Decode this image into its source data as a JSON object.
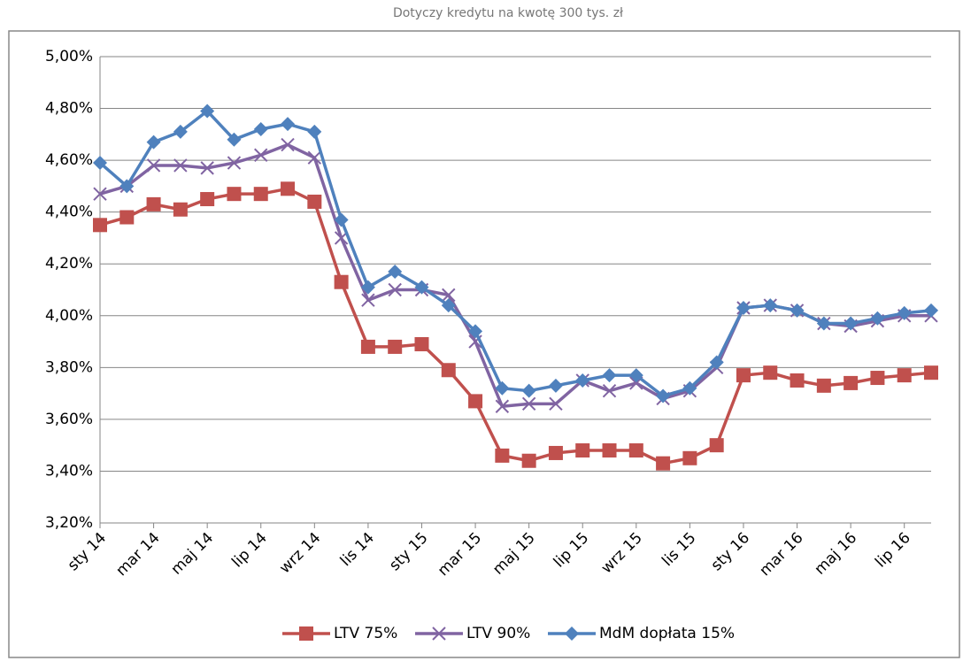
{
  "chart_data": {
    "type": "line",
    "title": "Dotyczy kredytu na kwotę 300 tys. zł",
    "categories": [
      "sty 14",
      null,
      "mar 14",
      null,
      "maj 14",
      null,
      "lip 14",
      null,
      "wrz 14",
      null,
      "lis 14",
      null,
      "sty 15",
      null,
      "mar 15",
      null,
      "maj 15",
      null,
      "lip 15",
      null,
      "wrz 15",
      null,
      "lis 15",
      null,
      "sty 16",
      null,
      "mar 16",
      null,
      "maj 16",
      null,
      "lip 16",
      null
    ],
    "series": [
      {
        "name": "LTV 75%",
        "color": "#c0504d",
        "marker": "square",
        "values": [
          4.35,
          4.38,
          4.43,
          4.41,
          4.45,
          4.47,
          4.47,
          4.49,
          4.44,
          4.13,
          3.88,
          3.88,
          3.89,
          3.79,
          3.67,
          3.46,
          3.44,
          3.47,
          3.48,
          3.48,
          3.48,
          3.43,
          3.45,
          3.5,
          3.77,
          3.78,
          3.75,
          3.73,
          3.74,
          3.76,
          3.77,
          3.78
        ]
      },
      {
        "name": "LTV 90%",
        "color": "#8064a2",
        "marker": "x",
        "values": [
          4.47,
          4.5,
          4.58,
          4.58,
          4.57,
          4.59,
          4.62,
          4.66,
          4.61,
          4.3,
          4.06,
          4.1,
          4.1,
          4.08,
          3.9,
          3.65,
          3.66,
          3.66,
          3.75,
          3.71,
          3.74,
          3.68,
          3.71,
          3.8,
          4.03,
          4.04,
          4.02,
          3.97,
          3.96,
          3.98,
          4.0,
          4.0
        ]
      },
      {
        "name": "MdM dopłata 15%",
        "color": "#4f81bd",
        "marker": "diamond",
        "values": [
          4.59,
          4.5,
          4.67,
          4.71,
          4.79,
          4.68,
          4.72,
          4.74,
          4.71,
          4.37,
          4.11,
          4.17,
          4.11,
          4.04,
          3.94,
          3.72,
          3.71,
          3.73,
          3.75,
          3.77,
          3.77,
          3.69,
          3.72,
          3.82,
          4.03,
          4.04,
          4.02,
          3.97,
          3.97,
          3.99,
          4.01,
          4.02
        ]
      }
    ],
    "ylim": [
      3.2,
      5.0
    ],
    "yticks": [
      {
        "value": 3.2,
        "label": "3,20%"
      },
      {
        "value": 3.4,
        "label": "3,40%"
      },
      {
        "value": 3.6,
        "label": "3,60%"
      },
      {
        "value": 3.8,
        "label": "3,80%"
      },
      {
        "value": 4.0,
        "label": "4,00%"
      },
      {
        "value": 4.2,
        "label": "4,20%"
      },
      {
        "value": 4.4,
        "label": "4,40%"
      },
      {
        "value": 4.6,
        "label": "4,60%"
      },
      {
        "value": 4.8,
        "label": "4,80%"
      },
      {
        "value": 5.0,
        "label": "5,00%"
      }
    ],
    "grid": true,
    "legend": "bottom"
  }
}
